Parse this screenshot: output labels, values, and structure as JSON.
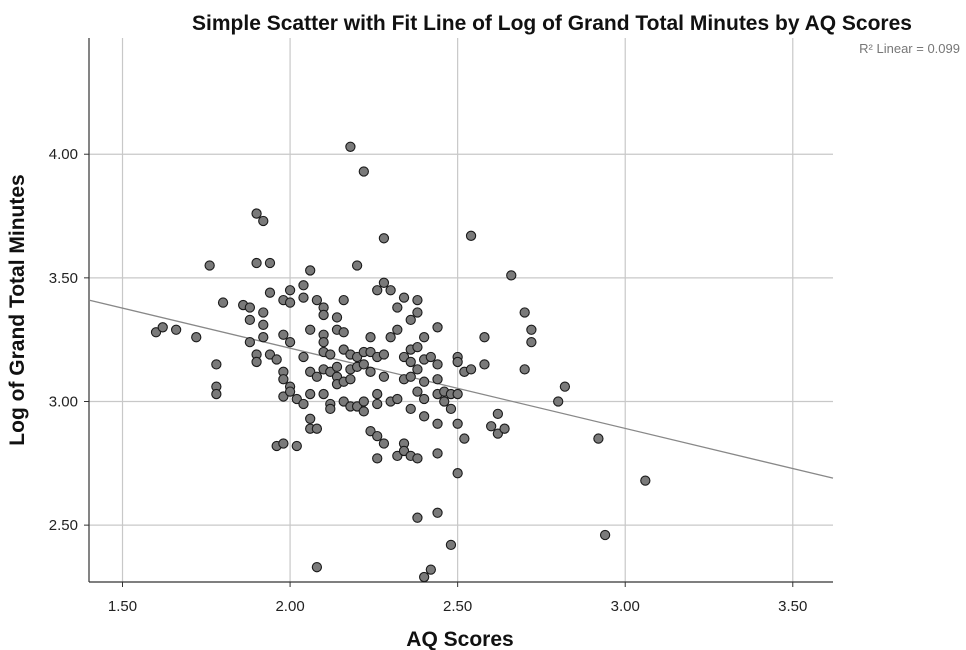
{
  "chart_data": {
    "type": "scatter",
    "title": "Simple Scatter with Fit Line of Log of Grand Total Minutes by AQ Scores",
    "xlabel": "AQ Scores",
    "ylabel": "Log of Grand Total Minutes",
    "xlim": [
      1.4,
      3.62
    ],
    "ylim": [
      2.27,
      4.47
    ],
    "xticks": [
      1.5,
      2.0,
      2.5,
      3.0,
      3.5
    ],
    "xtick_labels": [
      "1.50",
      "2.00",
      "2.50",
      "3.00",
      "3.50"
    ],
    "yticks": [
      2.5,
      3.0,
      3.5,
      4.0
    ],
    "ytick_labels": [
      "2.50",
      "3.00",
      "3.50",
      "4.00"
    ],
    "grid": true,
    "fit_line": {
      "x": [
        1.4,
        3.62
      ],
      "y": [
        3.41,
        2.69
      ]
    },
    "annotation": "R² Linear = 0.099",
    "colors": {
      "point_fill": "#7a7a7a",
      "point_edge": "#1a1a1a",
      "grid": "#c8c8c8",
      "fit_line": "#888888"
    },
    "points": [
      [
        1.6,
        3.28
      ],
      [
        1.62,
        3.3
      ],
      [
        1.66,
        3.29
      ],
      [
        1.72,
        3.26
      ],
      [
        1.76,
        3.55
      ],
      [
        1.78,
        3.15
      ],
      [
        1.78,
        3.06
      ],
      [
        1.78,
        3.03
      ],
      [
        1.8,
        3.4
      ],
      [
        1.86,
        3.39
      ],
      [
        1.88,
        3.38
      ],
      [
        1.88,
        3.33
      ],
      [
        1.88,
        3.24
      ],
      [
        1.9,
        3.76
      ],
      [
        1.92,
        3.73
      ],
      [
        1.9,
        3.56
      ],
      [
        1.9,
        3.19
      ],
      [
        1.9,
        3.16
      ],
      [
        1.92,
        3.36
      ],
      [
        1.92,
        3.31
      ],
      [
        1.92,
        3.26
      ],
      [
        1.94,
        3.56
      ],
      [
        1.94,
        3.44
      ],
      [
        1.94,
        3.19
      ],
      [
        1.96,
        3.17
      ],
      [
        1.96,
        2.82
      ],
      [
        1.98,
        3.41
      ],
      [
        1.98,
        3.27
      ],
      [
        1.98,
        3.12
      ],
      [
        1.98,
        3.09
      ],
      [
        1.98,
        3.02
      ],
      [
        1.98,
        2.83
      ],
      [
        2.0,
        3.45
      ],
      [
        2.0,
        3.4
      ],
      [
        2.0,
        3.24
      ],
      [
        2.0,
        3.06
      ],
      [
        2.0,
        3.04
      ],
      [
        2.02,
        3.01
      ],
      [
        2.02,
        2.82
      ],
      [
        2.04,
        3.47
      ],
      [
        2.04,
        3.42
      ],
      [
        2.04,
        3.18
      ],
      [
        2.04,
        2.99
      ],
      [
        2.06,
        3.53
      ],
      [
        2.06,
        3.29
      ],
      [
        2.06,
        3.12
      ],
      [
        2.06,
        3.03
      ],
      [
        2.06,
        2.93
      ],
      [
        2.06,
        2.89
      ],
      [
        2.08,
        3.41
      ],
      [
        2.08,
        3.1
      ],
      [
        2.08,
        2.89
      ],
      [
        2.08,
        2.33
      ],
      [
        2.1,
        3.38
      ],
      [
        2.1,
        3.35
      ],
      [
        2.1,
        3.27
      ],
      [
        2.1,
        3.24
      ],
      [
        2.1,
        3.2
      ],
      [
        2.1,
        3.13
      ],
      [
        2.1,
        3.03
      ],
      [
        2.12,
        3.19
      ],
      [
        2.12,
        3.12
      ],
      [
        2.12,
        2.99
      ],
      [
        2.12,
        2.97
      ],
      [
        2.14,
        3.34
      ],
      [
        2.14,
        3.29
      ],
      [
        2.14,
        3.14
      ],
      [
        2.14,
        3.1
      ],
      [
        2.14,
        3.07
      ],
      [
        2.16,
        3.41
      ],
      [
        2.16,
        3.28
      ],
      [
        2.16,
        3.21
      ],
      [
        2.16,
        3.08
      ],
      [
        2.16,
        3.0
      ],
      [
        2.18,
        4.03
      ],
      [
        2.18,
        3.19
      ],
      [
        2.18,
        3.13
      ],
      [
        2.18,
        3.09
      ],
      [
        2.18,
        2.98
      ],
      [
        2.2,
        3.55
      ],
      [
        2.2,
        3.18
      ],
      [
        2.2,
        3.14
      ],
      [
        2.2,
        2.98
      ],
      [
        2.22,
        3.93
      ],
      [
        2.22,
        3.2
      ],
      [
        2.22,
        3.15
      ],
      [
        2.22,
        3.0
      ],
      [
        2.22,
        2.96
      ],
      [
        2.24,
        3.26
      ],
      [
        2.24,
        3.2
      ],
      [
        2.24,
        3.12
      ],
      [
        2.24,
        2.88
      ],
      [
        2.26,
        3.45
      ],
      [
        2.26,
        3.18
      ],
      [
        2.26,
        3.03
      ],
      [
        2.26,
        2.99
      ],
      [
        2.26,
        2.86
      ],
      [
        2.26,
        2.77
      ],
      [
        2.28,
        3.66
      ],
      [
        2.28,
        3.48
      ],
      [
        2.28,
        3.19
      ],
      [
        2.28,
        3.1
      ],
      [
        2.28,
        2.83
      ],
      [
        2.3,
        3.45
      ],
      [
        2.3,
        3.26
      ],
      [
        2.3,
        3.0
      ],
      [
        2.32,
        3.38
      ],
      [
        2.32,
        3.29
      ],
      [
        2.32,
        3.01
      ],
      [
        2.32,
        2.78
      ],
      [
        2.34,
        3.42
      ],
      [
        2.34,
        3.18
      ],
      [
        2.34,
        3.09
      ],
      [
        2.34,
        2.83
      ],
      [
        2.34,
        2.8
      ],
      [
        2.36,
        3.33
      ],
      [
        2.36,
        3.21
      ],
      [
        2.36,
        3.16
      ],
      [
        2.36,
        3.1
      ],
      [
        2.36,
        2.97
      ],
      [
        2.36,
        2.78
      ],
      [
        2.38,
        3.41
      ],
      [
        2.38,
        3.36
      ],
      [
        2.38,
        3.22
      ],
      [
        2.38,
        3.13
      ],
      [
        2.38,
        3.04
      ],
      [
        2.38,
        2.77
      ],
      [
        2.38,
        2.53
      ],
      [
        2.4,
        3.26
      ],
      [
        2.4,
        3.17
      ],
      [
        2.4,
        3.08
      ],
      [
        2.4,
        3.01
      ],
      [
        2.4,
        2.94
      ],
      [
        2.4,
        2.29
      ],
      [
        2.42,
        3.18
      ],
      [
        2.42,
        2.32
      ],
      [
        2.44,
        3.3
      ],
      [
        2.44,
        3.15
      ],
      [
        2.44,
        3.09
      ],
      [
        2.44,
        3.03
      ],
      [
        2.44,
        2.91
      ],
      [
        2.44,
        2.79
      ],
      [
        2.44,
        2.55
      ],
      [
        2.46,
        3.04
      ],
      [
        2.46,
        3.0
      ],
      [
        2.48,
        3.03
      ],
      [
        2.48,
        2.97
      ],
      [
        2.48,
        2.42
      ],
      [
        2.5,
        3.18
      ],
      [
        2.5,
        3.16
      ],
      [
        2.5,
        3.03
      ],
      [
        2.5,
        2.91
      ],
      [
        2.5,
        2.71
      ],
      [
        2.52,
        3.12
      ],
      [
        2.52,
        2.85
      ],
      [
        2.54,
        3.67
      ],
      [
        2.54,
        3.13
      ],
      [
        2.58,
        3.26
      ],
      [
        2.58,
        3.15
      ],
      [
        2.6,
        2.9
      ],
      [
        2.62,
        2.95
      ],
      [
        2.62,
        2.87
      ],
      [
        2.64,
        2.89
      ],
      [
        2.66,
        3.51
      ],
      [
        2.7,
        3.36
      ],
      [
        2.7,
        3.13
      ],
      [
        2.72,
        3.29
      ],
      [
        2.72,
        3.24
      ],
      [
        2.8,
        3.0
      ],
      [
        2.82,
        3.06
      ],
      [
        2.92,
        2.85
      ],
      [
        2.94,
        2.46
      ],
      [
        3.06,
        2.68
      ]
    ]
  }
}
